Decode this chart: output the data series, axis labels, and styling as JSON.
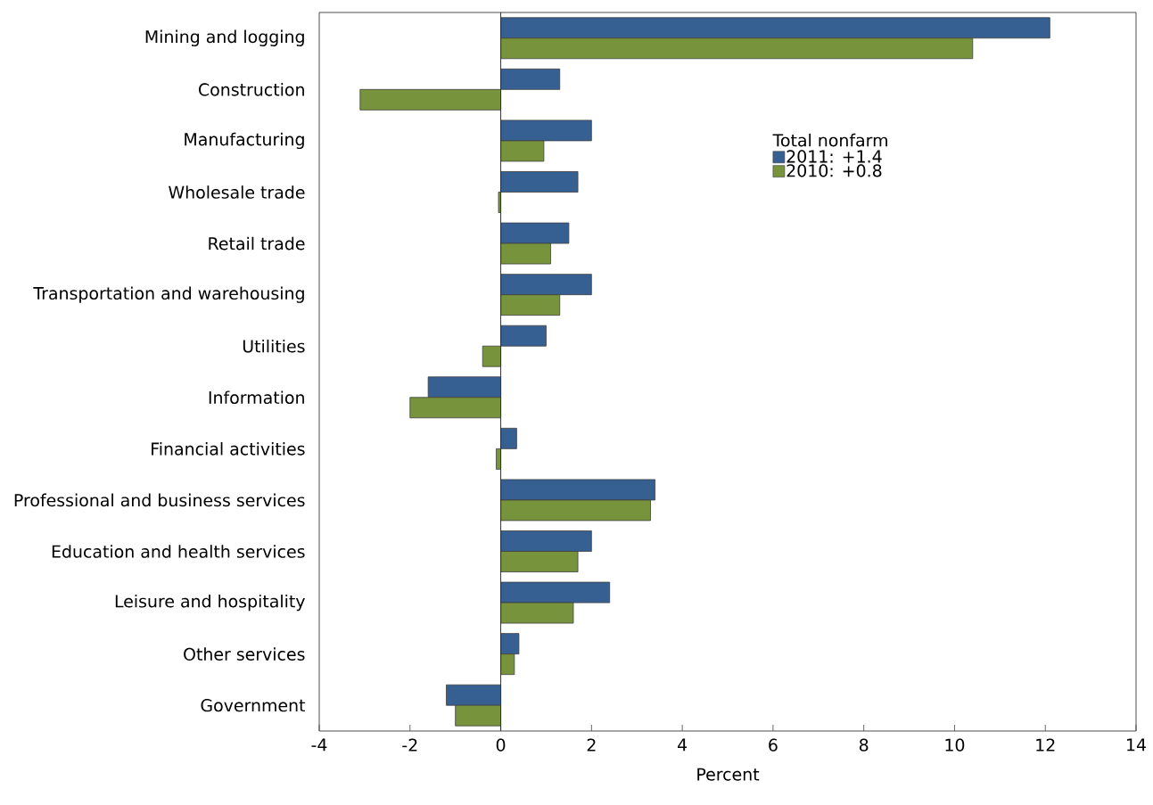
{
  "chart_data": {
    "type": "bar",
    "orientation": "horizontal",
    "xlabel": "Percent",
    "legend_title": "Total nonfarm",
    "legend": "top right",
    "categories": [
      "Mining and logging",
      "Construction",
      "Manufacturing",
      "Wholesale trade",
      "Retail trade",
      "Transportation and warehousing",
      "Utilities",
      "Information",
      "Financial activities",
      "Professional and business services",
      "Education and health services",
      "Leisure and hospitality",
      "Other services",
      "Government"
    ],
    "series": [
      {
        "name": "2011: +1.4",
        "color": "#366092",
        "values": [
          12.1,
          1.3,
          2.0,
          1.7,
          1.5,
          2.0,
          1.0,
          -1.6,
          0.35,
          3.4,
          2.0,
          2.4,
          0.4,
          -1.2
        ]
      },
      {
        "name": "2010: +0.8",
        "color": "#77933c",
        "values": [
          10.4,
          -3.1,
          0.95,
          -0.05,
          1.1,
          1.3,
          -0.4,
          -2.0,
          -0.1,
          3.3,
          1.7,
          1.6,
          0.3,
          -1.0
        ]
      }
    ],
    "xlim": [
      -4,
      14
    ],
    "xticks": [
      -4,
      -2,
      0,
      2,
      4,
      6,
      8,
      10,
      12,
      14
    ],
    "grid": false,
    "ref_lines": [
      {
        "axis": "x",
        "value": 0
      }
    ]
  }
}
